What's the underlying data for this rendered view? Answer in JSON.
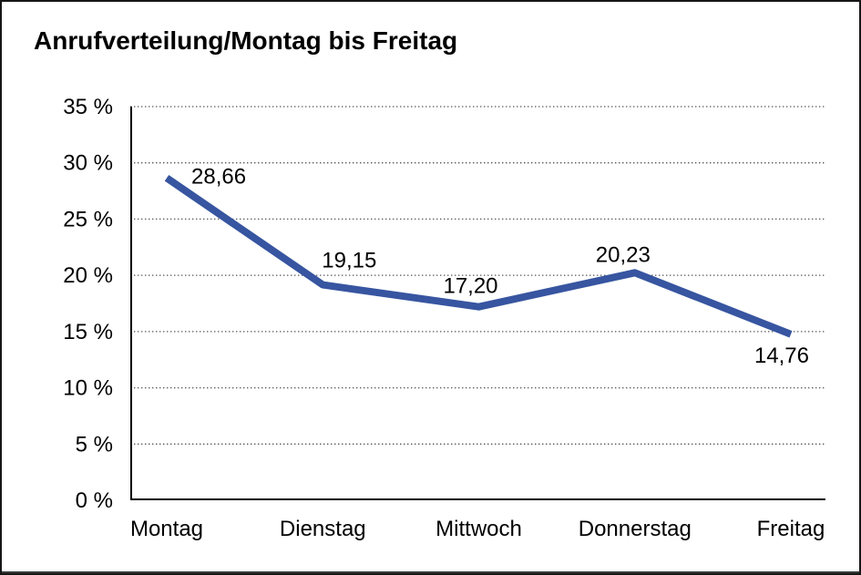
{
  "chart_data": {
    "type": "line",
    "title": "Anrufverteilung/Montag bis Freitag",
    "categories": [
      "Montag",
      "Dienstag",
      "Mittwoch",
      "Donnerstag",
      "Freitag"
    ],
    "values": [
      28.66,
      19.15,
      17.2,
      20.23,
      14.76
    ],
    "point_labels": [
      "28,66",
      "19,15",
      "17,20",
      "20,23",
      "14,76"
    ],
    "ylim": [
      0,
      35
    ],
    "yticks": [
      0,
      5,
      10,
      15,
      20,
      25,
      30,
      35
    ],
    "ytick_labels": [
      "0 %",
      "5 %",
      "10 %",
      "15 %",
      "20 %",
      "25 %",
      "30 %",
      "35 %"
    ],
    "xlabel": "",
    "ylabel": "",
    "grid": "horizontal-dotted",
    "legend_position": "none",
    "colors": {
      "line": "#3755A0",
      "axis": "#000000",
      "grid": "#555555",
      "text": "#000000",
      "background": "#ffffff",
      "frame_border": "#161616"
    }
  }
}
